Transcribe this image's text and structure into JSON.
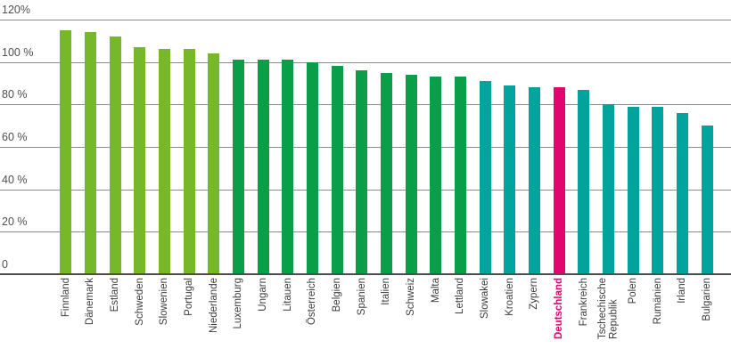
{
  "chart_data": {
    "type": "bar",
    "title": "",
    "xlabel": "",
    "ylabel": "",
    "unit": "%",
    "ylim": [
      0,
      120
    ],
    "grid": true,
    "legend": "none",
    "y_ticks": [
      {
        "value": 120,
        "label": "120%"
      },
      {
        "value": 100,
        "label": "100 %"
      },
      {
        "value": 80,
        "label": "80 %"
      },
      {
        "value": 60,
        "label": "60 %"
      },
      {
        "value": 40,
        "label": "40 %"
      },
      {
        "value": 20,
        "label": "20 %"
      },
      {
        "value": 0,
        "label": "0"
      }
    ],
    "palette": {
      "light_green": "#76b82a",
      "dark_green": "#0a9e48",
      "teal": "#00a49c",
      "pink": "#e2056f"
    },
    "highlighted_category": "Deutschland",
    "bars": [
      {
        "label": "Finnland",
        "value": 115,
        "color": "light_green"
      },
      {
        "label": "Dänemark",
        "value": 114,
        "color": "light_green"
      },
      {
        "label": "Estland",
        "value": 112,
        "color": "light_green"
      },
      {
        "label": "Schweden",
        "value": 107,
        "color": "light_green"
      },
      {
        "label": "Slowenien",
        "value": 106,
        "color": "light_green"
      },
      {
        "label": "Portugal",
        "value": 106,
        "color": "light_green"
      },
      {
        "label": "Niederlande",
        "value": 104,
        "color": "light_green"
      },
      {
        "label": "Luxemburg",
        "value": 101,
        "color": "dark_green"
      },
      {
        "label": "Ungarn",
        "value": 101,
        "color": "dark_green"
      },
      {
        "label": "Litauen",
        "value": 101,
        "color": "dark_green"
      },
      {
        "label": "Österreich",
        "value": 100,
        "color": "dark_green"
      },
      {
        "label": "Belgien",
        "value": 98,
        "color": "dark_green"
      },
      {
        "label": "Spanien",
        "value": 96,
        "color": "dark_green"
      },
      {
        "label": "Italien",
        "value": 95,
        "color": "dark_green"
      },
      {
        "label": "Schweiz",
        "value": 94,
        "color": "dark_green"
      },
      {
        "label": "Malta",
        "value": 93,
        "color": "dark_green"
      },
      {
        "label": "Lettland",
        "value": 93,
        "color": "dark_green"
      },
      {
        "label": "Slowakei",
        "value": 91,
        "color": "teal"
      },
      {
        "label": "Kroatien",
        "value": 89,
        "color": "teal"
      },
      {
        "label": "Zypern",
        "value": 88,
        "color": "teal"
      },
      {
        "label": "Deutschland",
        "value": 88,
        "color": "pink"
      },
      {
        "label": "Frankreich",
        "value": 87,
        "color": "teal"
      },
      {
        "label": "Tschechische Republik",
        "lines": [
          "Tschechische",
          "Republik"
        ],
        "value": 80,
        "color": "teal"
      },
      {
        "label": "Polen",
        "value": 79,
        "color": "teal"
      },
      {
        "label": "Rumänien",
        "value": 79,
        "color": "teal"
      },
      {
        "label": "Irland",
        "value": 76,
        "color": "teal"
      },
      {
        "label": "Bulgarien",
        "value": 70,
        "color": "teal"
      }
    ]
  },
  "colors": {
    "grid_line": "#8a8a8a",
    "axis_line": "#4d4d4d",
    "tick_label": "#4e4e50",
    "category_label": "#3d3d3d",
    "background": "#ffffff"
  }
}
